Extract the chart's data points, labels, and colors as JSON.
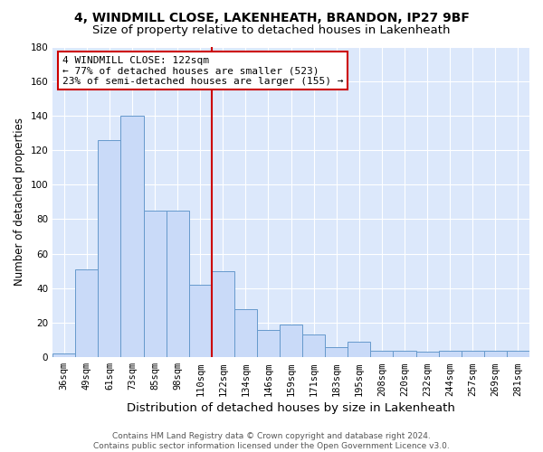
{
  "title": "4, WINDMILL CLOSE, LAKENHEATH, BRANDON, IP27 9BF",
  "subtitle": "Size of property relative to detached houses in Lakenheath",
  "xlabel": "Distribution of detached houses by size in Lakenheath",
  "ylabel": "Number of detached properties",
  "categories": [
    "36sqm",
    "49sqm",
    "61sqm",
    "73sqm",
    "85sqm",
    "98sqm",
    "110sqm",
    "122sqm",
    "134sqm",
    "146sqm",
    "159sqm",
    "171sqm",
    "183sqm",
    "195sqm",
    "208sqm",
    "220sqm",
    "232sqm",
    "244sqm",
    "257sqm",
    "269sqm",
    "281sqm"
  ],
  "values": [
    2,
    51,
    126,
    140,
    85,
    85,
    42,
    50,
    28,
    16,
    19,
    13,
    6,
    9,
    4,
    4,
    3,
    4,
    4,
    4,
    4
  ],
  "bar_color": "#c9daf8",
  "bar_edge_color": "#6699cc",
  "vline_index": 7,
  "vline_color": "#cc0000",
  "annotation_text": "4 WINDMILL CLOSE: 122sqm\n← 77% of detached houses are smaller (523)\n23% of semi-detached houses are larger (155) →",
  "annotation_box_color": "white",
  "annotation_box_edge_color": "#cc0000",
  "ylim": [
    0,
    180
  ],
  "yticks": [
    0,
    20,
    40,
    60,
    80,
    100,
    120,
    140,
    160,
    180
  ],
  "background_color": "#dce8fb",
  "footer_line1": "Contains HM Land Registry data © Crown copyright and database right 2024.",
  "footer_line2": "Contains public sector information licensed under the Open Government Licence v3.0.",
  "title_fontsize": 10,
  "subtitle_fontsize": 9.5,
  "xlabel_fontsize": 9.5,
  "ylabel_fontsize": 8.5,
  "tick_fontsize": 7.5,
  "annotation_fontsize": 8,
  "footer_fontsize": 6.5
}
